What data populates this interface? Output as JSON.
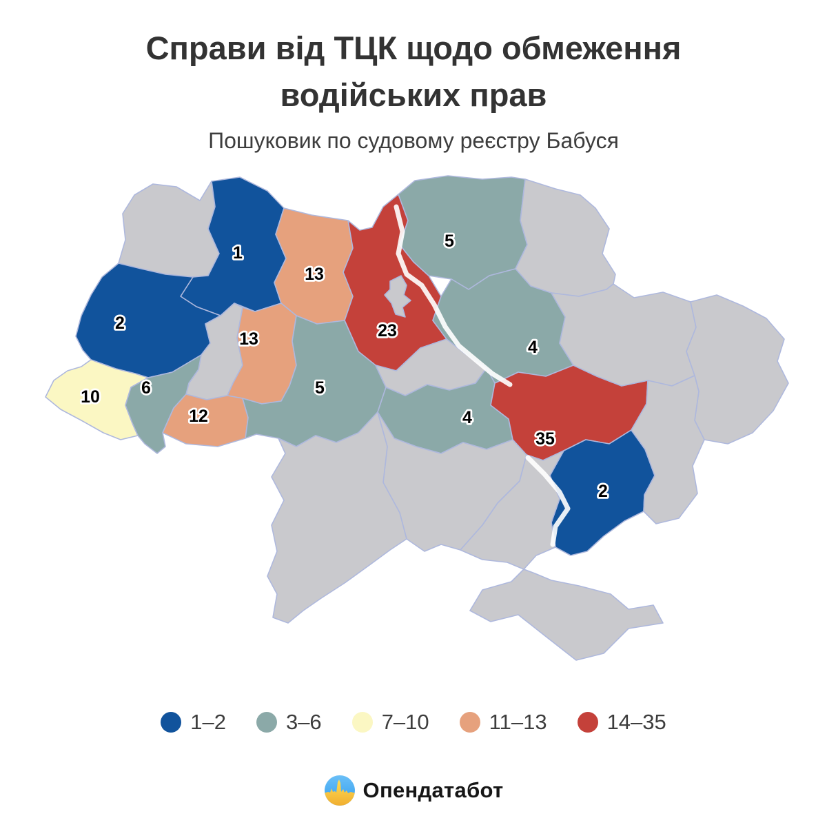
{
  "title": {
    "line1": "Справи від ТЦК щодо обмеження",
    "line2": "водійських прав"
  },
  "subtitle": "Пошуковик по судовому реєстру Бабуся",
  "legend": {
    "items": [
      {
        "label": "1–2",
        "color": "#11539c"
      },
      {
        "label": "3–6",
        "color": "#8ba9a8"
      },
      {
        "label": "7–10",
        "color": "#fbf7c3"
      },
      {
        "label": "11–13",
        "color": "#e6a17d"
      },
      {
        "label": "14–35",
        "color": "#c4413a"
      }
    ]
  },
  "map": {
    "no_data_color": "#c9c9cd",
    "border_color": "#aeb8dd",
    "regions": [
      {
        "id": "volyn",
        "value": null,
        "bucket": null
      },
      {
        "id": "rivne",
        "value": 1,
        "bucket": 0
      },
      {
        "id": "zhytomyr",
        "value": 13,
        "bucket": 3
      },
      {
        "id": "kyiv-oblast",
        "value": 23,
        "bucket": 4
      },
      {
        "id": "kyiv-city",
        "value": null,
        "bucket": null
      },
      {
        "id": "chernihiv",
        "value": 5,
        "bucket": 1
      },
      {
        "id": "sumy",
        "value": null,
        "bucket": null
      },
      {
        "id": "lviv",
        "value": 2,
        "bucket": 0
      },
      {
        "id": "ternopil",
        "value": null,
        "bucket": null
      },
      {
        "id": "khmelnytskyi",
        "value": 13,
        "bucket": 3
      },
      {
        "id": "zakarpattia",
        "value": 10,
        "bucket": 2
      },
      {
        "id": "ivano-frankivsk",
        "value": 6,
        "bucket": 1
      },
      {
        "id": "chernivtsi",
        "value": 12,
        "bucket": 3
      },
      {
        "id": "vinnytsia",
        "value": 5,
        "bucket": 1
      },
      {
        "id": "cherkasy",
        "value": null,
        "bucket": null
      },
      {
        "id": "poltava",
        "value": 4,
        "bucket": 1
      },
      {
        "id": "kirovohrad",
        "value": 4,
        "bucket": 1
      },
      {
        "id": "dnipropetrovsk",
        "value": 35,
        "bucket": 4
      },
      {
        "id": "zaporizhzhia",
        "value": 2,
        "bucket": 0
      },
      {
        "id": "kharkiv",
        "value": null,
        "bucket": null
      },
      {
        "id": "luhansk",
        "value": null,
        "bucket": null
      },
      {
        "id": "donetsk",
        "value": null,
        "bucket": null
      },
      {
        "id": "mykolaiv",
        "value": null,
        "bucket": null
      },
      {
        "id": "odesa",
        "value": null,
        "bucket": null
      },
      {
        "id": "kherson",
        "value": null,
        "bucket": null
      },
      {
        "id": "crimea",
        "value": null,
        "bucket": null
      }
    ]
  },
  "chart_data": {
    "type": "heatmap",
    "title": "Справи від ТЦК щодо обмеження водійських прав",
    "subtitle": "Пошуковик по судовому реєстру Бабуся",
    "legend_buckets": [
      "1–2",
      "3–6",
      "7–10",
      "11–13",
      "14–35"
    ],
    "values": {
      "rivne": 1,
      "lviv": 2,
      "zaporizhzhia": 2,
      "poltava": 4,
      "kirovohrad": 4,
      "chernihiv": 5,
      "vinnytsia": 5,
      "ivano-frankivsk": 6,
      "zakarpattia": 10,
      "chernivtsi": 12,
      "zhytomyr": 13,
      "khmelnytskyi": 13,
      "kyiv-oblast": 23,
      "dnipropetrovsk": 35
    }
  },
  "footer": {
    "brand": "Опендатабот"
  }
}
